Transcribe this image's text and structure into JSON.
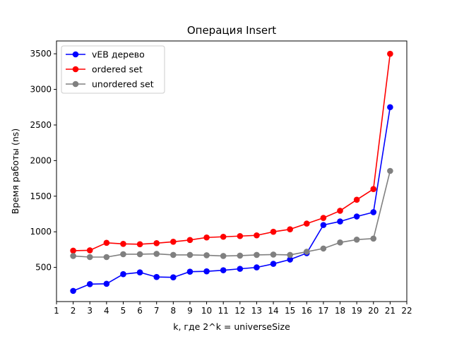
{
  "chart_data": {
    "type": "line",
    "title": "Операция Insert",
    "xlabel": "k, где 2^k = universeSize",
    "ylabel": "Время работы (ns)",
    "xlim": [
      1,
      22
    ],
    "ylim": [
      20,
      3680
    ],
    "xticks": [
      1,
      2,
      3,
      4,
      5,
      6,
      7,
      8,
      9,
      10,
      11,
      12,
      13,
      14,
      15,
      16,
      17,
      18,
      19,
      20,
      21,
      22
    ],
    "yticks": [
      500,
      1000,
      1500,
      2000,
      2500,
      3000,
      3500
    ],
    "grid": false,
    "legend_position": "upper-left",
    "x": [
      2,
      3,
      4,
      5,
      6,
      7,
      8,
      9,
      10,
      11,
      12,
      13,
      14,
      15,
      16,
      17,
      18,
      19,
      20,
      21
    ],
    "series": [
      {
        "name": "vEB дерево",
        "color": "#0000ff",
        "values": [
          170,
          265,
          270,
          405,
          430,
          365,
          360,
          440,
          445,
          460,
          480,
          500,
          550,
          610,
          700,
          1095,
          1145,
          1215,
          1275,
          2750
        ]
      },
      {
        "name": "ordered set",
        "color": "#ff0000",
        "values": [
          735,
          740,
          845,
          830,
          825,
          840,
          860,
          885,
          920,
          930,
          940,
          950,
          1000,
          1035,
          1115,
          1195,
          1295,
          1450,
          1600,
          3500
        ]
      },
      {
        "name": "unordered set",
        "color": "#808080",
        "values": [
          660,
          645,
          645,
          685,
          685,
          690,
          675,
          675,
          670,
          660,
          665,
          675,
          680,
          675,
          720,
          765,
          850,
          890,
          905,
          1855
        ]
      }
    ]
  }
}
